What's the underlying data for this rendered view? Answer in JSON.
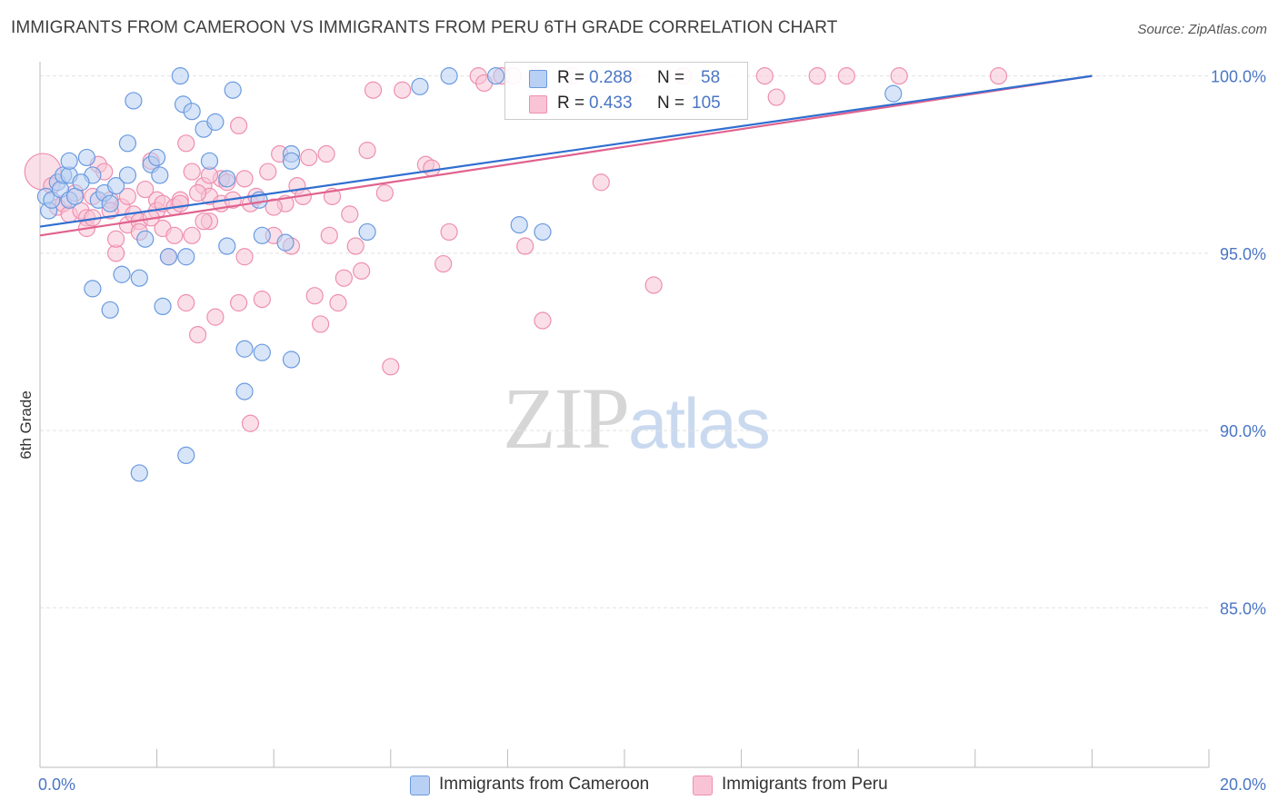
{
  "title": "IMMIGRANTS FROM CAMEROON VS IMMIGRANTS FROM PERU 6TH GRADE CORRELATION CHART",
  "source": "Source: ZipAtlas.com",
  "watermark": {
    "zip": "ZIP",
    "atlas": "atlas"
  },
  "colors": {
    "blue_fill": "#b8d0f3",
    "blue_stroke": "#6a9ae0",
    "blue_line": "#2f6fd0",
    "pink_fill": "#f8c4d5",
    "pink_stroke": "#ee8fb0",
    "pink_line": "#e0628f",
    "tick_text": "#4a76c4",
    "grid": "#e2e2e2"
  },
  "stats_legend": {
    "rows": [
      {
        "r_label": "R =",
        "r_value": "0.288",
        "n_label": "N =",
        "n_value": "58"
      },
      {
        "r_label": "R =",
        "r_value": "0.433",
        "n_label": "N =",
        "n_value": "105"
      }
    ]
  },
  "chart_data": {
    "type": "scatter",
    "title": "IMMIGRANTS FROM CAMEROON VS IMMIGRANTS FROM PERU 6TH GRADE CORRELATION CHART",
    "xlabel": "",
    "ylabel": "6th Grade",
    "xlim": [
      0,
      20
    ],
    "ylim": [
      80.5,
      100.4
    ],
    "x_tick_labels": [
      "0.0%",
      "20.0%"
    ],
    "y_ticks": [
      85,
      90,
      95,
      100
    ],
    "y_tick_labels": [
      "85.0%",
      "90.0%",
      "95.0%",
      "100.0%"
    ],
    "grid": true,
    "legend_position": "bottom",
    "series": [
      {
        "name": "Immigrants from Cameroon",
        "color": "#6a9ae0",
        "r": 0.288,
        "n": 58,
        "trend": {
          "x": [
            0.0,
            18.0
          ],
          "y": [
            95.75,
            100.0
          ]
        },
        "points": [
          [
            0.1,
            96.6
          ],
          [
            0.15,
            96.2
          ],
          [
            0.2,
            96.5
          ],
          [
            0.3,
            97.0
          ],
          [
            0.35,
            96.8
          ],
          [
            0.4,
            97.2
          ],
          [
            0.5,
            97.2
          ],
          [
            0.5,
            96.5
          ],
          [
            0.6,
            96.6
          ],
          [
            0.5,
            97.6
          ],
          [
            0.8,
            97.7
          ],
          [
            0.9,
            97.2
          ],
          [
            0.7,
            97.0
          ],
          [
            1.0,
            96.5
          ],
          [
            1.1,
            96.7
          ],
          [
            1.2,
            96.4
          ],
          [
            1.3,
            96.9
          ],
          [
            0.9,
            94.0
          ],
          [
            1.2,
            93.4
          ],
          [
            1.4,
            94.4
          ],
          [
            1.5,
            97.2
          ],
          [
            1.5,
            98.1
          ],
          [
            1.6,
            99.3
          ],
          [
            1.7,
            94.3
          ],
          [
            1.8,
            95.4
          ],
          [
            1.9,
            97.5
          ],
          [
            2.0,
            97.7
          ],
          [
            2.05,
            97.2
          ],
          [
            2.1,
            93.5
          ],
          [
            2.2,
            94.9
          ],
          [
            2.4,
            100.0
          ],
          [
            2.45,
            99.2
          ],
          [
            2.6,
            99.0
          ],
          [
            2.5,
            94.9
          ],
          [
            2.8,
            98.5
          ],
          [
            3.0,
            98.7
          ],
          [
            2.9,
            97.6
          ],
          [
            3.2,
            97.1
          ],
          [
            3.3,
            99.6
          ],
          [
            3.2,
            95.2
          ],
          [
            3.5,
            92.3
          ],
          [
            3.5,
            91.1
          ],
          [
            3.8,
            92.2
          ],
          [
            3.75,
            96.5
          ],
          [
            3.8,
            95.5
          ],
          [
            4.3,
            97.8
          ],
          [
            4.3,
            97.6
          ],
          [
            4.3,
            92.0
          ],
          [
            4.2,
            95.3
          ],
          [
            5.6,
            95.6
          ],
          [
            6.5,
            99.7
          ],
          [
            7.0,
            100.0
          ],
          [
            7.8,
            100.0
          ],
          [
            8.2,
            95.8
          ],
          [
            8.6,
            95.6
          ],
          [
            2.5,
            89.3
          ],
          [
            1.7,
            88.8
          ],
          [
            14.6,
            99.5
          ]
        ]
      },
      {
        "name": "Immigrants from Peru",
        "color": "#ee8fb0",
        "r": 0.433,
        "n": 105,
        "trend": {
          "x": [
            0.0,
            18.0
          ],
          "y": [
            95.5,
            100.0
          ]
        },
        "points": [
          [
            0.05,
            97.3
          ],
          [
            0.2,
            96.9
          ],
          [
            0.3,
            96.3
          ],
          [
            0.4,
            96.4
          ],
          [
            0.5,
            96.1
          ],
          [
            0.6,
            96.7
          ],
          [
            0.7,
            96.2
          ],
          [
            0.8,
            96.0
          ],
          [
            0.8,
            95.7
          ],
          [
            0.9,
            96.0
          ],
          [
            1.0,
            97.5
          ],
          [
            1.1,
            97.3
          ],
          [
            1.2,
            96.5
          ],
          [
            1.3,
            95.0
          ],
          [
            1.3,
            95.4
          ],
          [
            1.4,
            96.3
          ],
          [
            1.5,
            96.6
          ],
          [
            1.5,
            95.8
          ],
          [
            1.6,
            96.1
          ],
          [
            1.7,
            95.9
          ],
          [
            1.7,
            95.6
          ],
          [
            1.8,
            96.8
          ],
          [
            1.9,
            97.6
          ],
          [
            2.0,
            96.5
          ],
          [
            2.0,
            96.2
          ],
          [
            2.1,
            96.4
          ],
          [
            2.1,
            95.7
          ],
          [
            2.2,
            94.9
          ],
          [
            2.3,
            96.3
          ],
          [
            2.3,
            95.5
          ],
          [
            2.4,
            96.5
          ],
          [
            2.5,
            93.6
          ],
          [
            2.5,
            98.1
          ],
          [
            2.6,
            97.3
          ],
          [
            2.6,
            95.5
          ],
          [
            2.7,
            92.7
          ],
          [
            2.8,
            96.9
          ],
          [
            2.9,
            96.6
          ],
          [
            2.9,
            95.9
          ],
          [
            3.0,
            93.2
          ],
          [
            3.1,
            97.1
          ],
          [
            3.1,
            96.4
          ],
          [
            3.2,
            97.0
          ],
          [
            3.3,
            96.5
          ],
          [
            3.4,
            98.6
          ],
          [
            3.4,
            93.6
          ],
          [
            3.5,
            94.9
          ],
          [
            3.6,
            96.4
          ],
          [
            3.7,
            96.6
          ],
          [
            3.8,
            93.7
          ],
          [
            3.9,
            97.3
          ],
          [
            4.0,
            95.5
          ],
          [
            4.1,
            97.8
          ],
          [
            4.2,
            96.4
          ],
          [
            4.3,
            95.2
          ],
          [
            4.4,
            96.9
          ],
          [
            4.5,
            96.6
          ],
          [
            4.6,
            97.7
          ],
          [
            4.7,
            93.8
          ],
          [
            4.8,
            93.0
          ],
          [
            4.9,
            97.8
          ],
          [
            4.95,
            95.5
          ],
          [
            5.0,
            96.6
          ],
          [
            5.1,
            93.6
          ],
          [
            5.2,
            94.3
          ],
          [
            5.3,
            96.1
          ],
          [
            5.4,
            95.2
          ],
          [
            5.5,
            94.5
          ],
          [
            5.6,
            97.9
          ],
          [
            5.7,
            99.6
          ],
          [
            5.9,
            96.7
          ],
          [
            6.0,
            91.8
          ],
          [
            6.2,
            99.6
          ],
          [
            6.6,
            97.5
          ],
          [
            6.7,
            97.4
          ],
          [
            6.9,
            94.7
          ],
          [
            7.0,
            95.6
          ],
          [
            7.5,
            100.0
          ],
          [
            7.6,
            99.8
          ],
          [
            7.9,
            100.0
          ],
          [
            8.1,
            100.0
          ],
          [
            8.3,
            95.2
          ],
          [
            8.5,
            100.0
          ],
          [
            8.6,
            93.1
          ],
          [
            9.1,
            100.0
          ],
          [
            9.6,
            97.0
          ],
          [
            10.1,
            100.0
          ],
          [
            10.5,
            94.1
          ],
          [
            11.0,
            100.0
          ],
          [
            12.4,
            100.0
          ],
          [
            12.6,
            99.4
          ],
          [
            13.3,
            100.0
          ],
          [
            13.8,
            100.0
          ],
          [
            14.7,
            100.0
          ],
          [
            16.4,
            100.0
          ],
          [
            3.6,
            90.2
          ],
          [
            2.9,
            97.2
          ],
          [
            2.7,
            96.7
          ],
          [
            1.9,
            96.0
          ],
          [
            2.8,
            95.9
          ],
          [
            4.0,
            96.3
          ],
          [
            3.5,
            97.1
          ],
          [
            1.2,
            96.2
          ],
          [
            0.9,
            96.6
          ],
          [
            2.4,
            96.4
          ]
        ]
      }
    ]
  }
}
